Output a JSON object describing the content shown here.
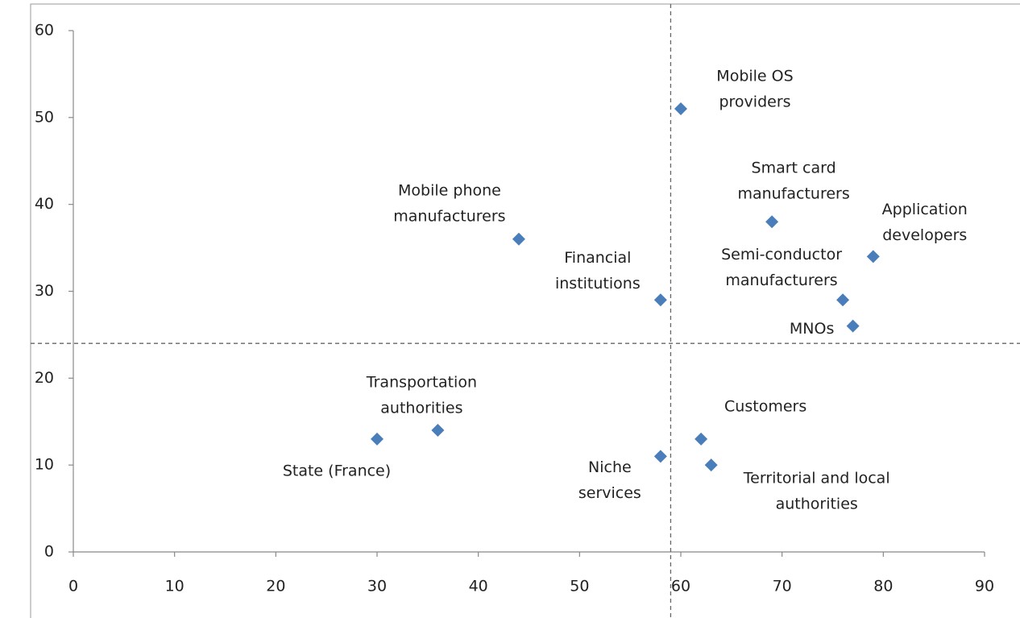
{
  "chart_data": {
    "type": "scatter",
    "labels": [
      [
        "Mobile OS",
        "providers"
      ],
      [
        "Smart card",
        "manufacturers"
      ],
      [
        "Application",
        "developers"
      ],
      [
        "Semi-conductor",
        "manufacturers"
      ],
      [
        "MNOs"
      ],
      [
        "Mobile phone",
        "manufacturers"
      ],
      [
        "Financial",
        "institutions"
      ],
      [
        "Transportation",
        "authorities"
      ],
      [
        "State (France)"
      ],
      [
        "Niche",
        "services"
      ],
      [
        "Customers"
      ],
      [
        "Territorial and local",
        "authorities"
      ]
    ],
    "x": [
      60,
      69,
      79,
      76,
      77,
      44,
      58,
      36,
      30,
      58,
      62,
      63
    ],
    "y": [
      51,
      38,
      34,
      29,
      26,
      36,
      29,
      14,
      13,
      11,
      13,
      10
    ],
    "color": "#4a7ebb",
    "xlim": [
      0,
      90
    ],
    "xticks": [
      0,
      10,
      20,
      30,
      40,
      50,
      60,
      70,
      80,
      90
    ],
    "ylim": [
      0,
      60
    ],
    "yticks": [
      0,
      10,
      20,
      30,
      40,
      50,
      60
    ],
    "reference_lines": {
      "x": 59,
      "y": 24
    }
  }
}
